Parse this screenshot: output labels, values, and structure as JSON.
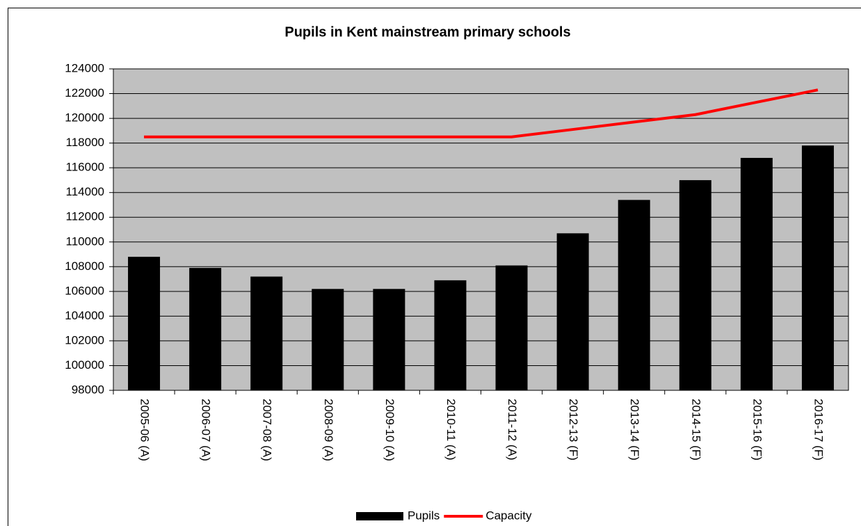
{
  "chart_data": {
    "type": "bar",
    "title": "Pupils in Kent mainstream primary schools",
    "categories": [
      "2005-06 (A)",
      "2006-07 (A)",
      "2007-08 (A)",
      "2008-09 (A)",
      "2009-10 (A)",
      "2010-11 (A)",
      "2011-12 (A)",
      "2012-13 (F)",
      "2013-14 (F)",
      "2014-15 (F)",
      "2015-16 (F)",
      "2016-17 (F)"
    ],
    "series": [
      {
        "name": "Pupils",
        "type": "bar",
        "color": "#000000",
        "values": [
          108800,
          107900,
          107200,
          106200,
          106200,
          106900,
          108100,
          110700,
          113400,
          115000,
          116800,
          117800
        ]
      },
      {
        "name": "Capacity",
        "type": "line",
        "color": "#ff0000",
        "values": [
          118500,
          118500,
          118500,
          118500,
          118500,
          118500,
          118500,
          119100,
          119700,
          120300,
          121300,
          122300
        ]
      }
    ],
    "ylim": [
      98000,
      124000
    ],
    "yticks": [
      98000,
      100000,
      102000,
      104000,
      106000,
      108000,
      110000,
      112000,
      114000,
      116000,
      118000,
      120000,
      122000,
      124000
    ],
    "grid": true,
    "legend": "bottom"
  }
}
